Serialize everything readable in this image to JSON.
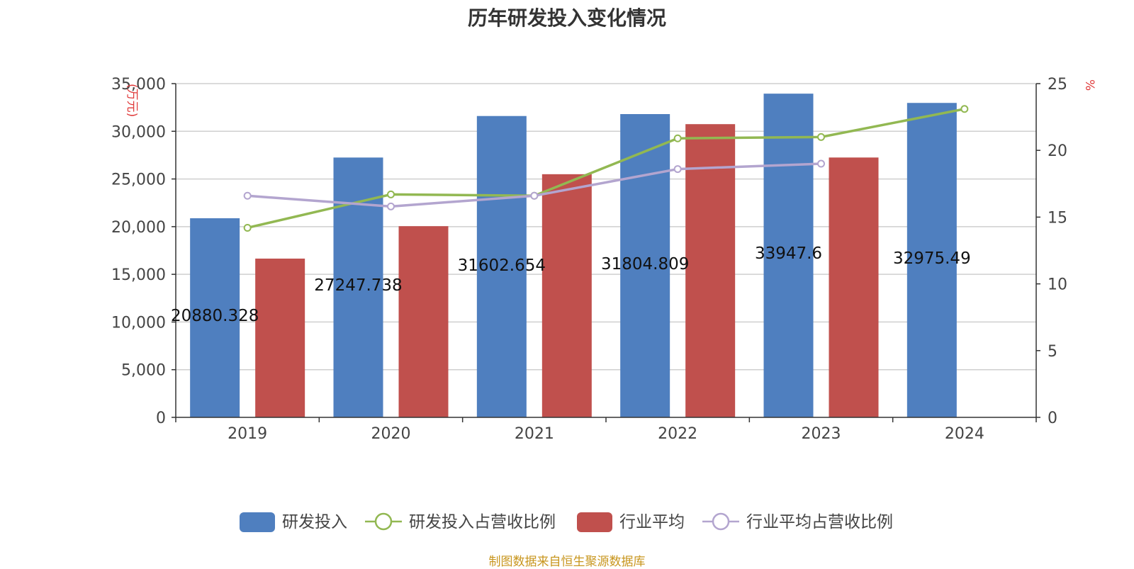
{
  "chart_data": {
    "type": "bar",
    "title": "历年研发投入变化情况",
    "categories": [
      "2019",
      "2020",
      "2021",
      "2022",
      "2023",
      "2024"
    ],
    "y_left": {
      "label": "(万元)",
      "ylim": [
        0,
        35000
      ],
      "ticks": [
        "0",
        "5,000",
        "10,000",
        "15,000",
        "20,000",
        "25,000",
        "30,000",
        "35,000"
      ]
    },
    "y_right": {
      "label": "%",
      "ylim": [
        0,
        25
      ],
      "ticks": [
        "0",
        "5",
        "10",
        "15",
        "20",
        "25"
      ]
    },
    "series": [
      {
        "name": "研发投入",
        "kind": "bar",
        "axis": "left",
        "color": "#4f7fbf",
        "values": [
          20880.328,
          27247.738,
          31602.654,
          31804.809,
          33947.6,
          32975.49
        ],
        "labels": [
          "20880.328",
          "27247.738",
          "31602.654",
          "31804.809",
          "33947.6",
          "32975.49"
        ]
      },
      {
        "name": "研发投入占营收比例",
        "kind": "line",
        "axis": "right",
        "color": "#92b852",
        "values": [
          14.2,
          16.7,
          16.6,
          20.9,
          21.0,
          23.1
        ]
      },
      {
        "name": "行业平均",
        "kind": "bar",
        "axis": "left",
        "color": "#c0504d",
        "values": [
          16650,
          20050,
          25500,
          30750,
          27250,
          null
        ]
      },
      {
        "name": "行业平均占营收比例",
        "kind": "line",
        "axis": "right",
        "color": "#b3a5cf",
        "values": [
          16.6,
          15.8,
          16.6,
          18.6,
          19.0,
          null
        ]
      }
    ],
    "grid": true,
    "legend": "bottom-center"
  },
  "footer": {
    "source": "制图数据来自恒生聚源数据库"
  }
}
